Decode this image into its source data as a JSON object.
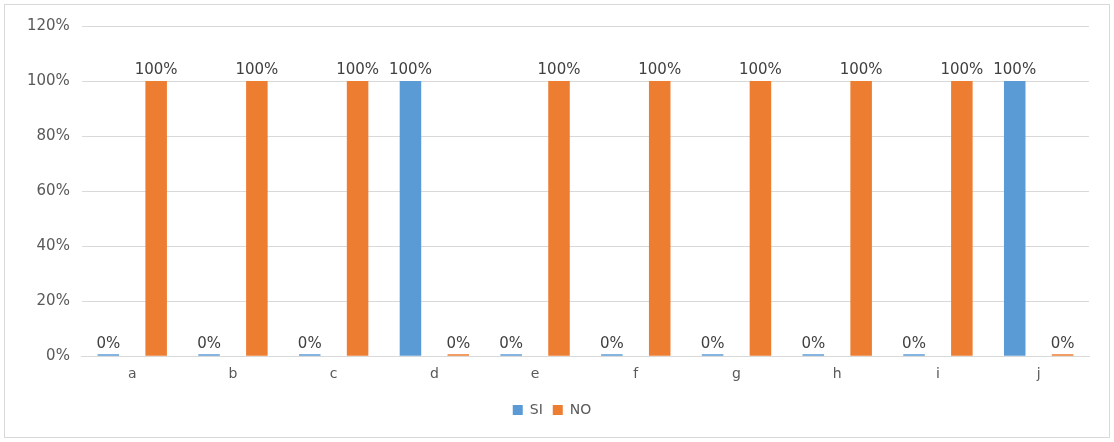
{
  "chart_data": {
    "type": "bar",
    "categories": [
      "a",
      "b",
      "c",
      "d",
      "e",
      "f",
      "g",
      "h",
      "i",
      "j"
    ],
    "series": [
      {
        "name": "SI",
        "color": "#5b9bd5",
        "values": [
          0,
          0,
          0,
          100,
          0,
          0,
          0,
          0,
          0,
          100
        ],
        "value_labels": [
          "0%",
          "0%",
          "0%",
          "100%",
          "0%",
          "0%",
          "0%",
          "0%",
          "0%",
          "100%"
        ]
      },
      {
        "name": "NO",
        "color": "#ed7d31",
        "values": [
          100,
          100,
          100,
          0,
          100,
          100,
          100,
          100,
          100,
          0
        ],
        "value_labels": [
          "100%",
          "100%",
          "100%",
          "0%",
          "100%",
          "100%",
          "100%",
          "100%",
          "100%",
          "0%"
        ]
      }
    ],
    "ylim": [
      0,
      120
    ],
    "yticks": [
      {
        "value": 0,
        "label": "0%"
      },
      {
        "value": 20,
        "label": "20%"
      },
      {
        "value": 40,
        "label": "40%"
      },
      {
        "value": 60,
        "label": "60%"
      },
      {
        "value": 80,
        "label": "80%"
      },
      {
        "value": 100,
        "label": "100%"
      },
      {
        "value": 120,
        "label": "120%"
      }
    ],
    "grid": "y",
    "legend": "bottom"
  }
}
